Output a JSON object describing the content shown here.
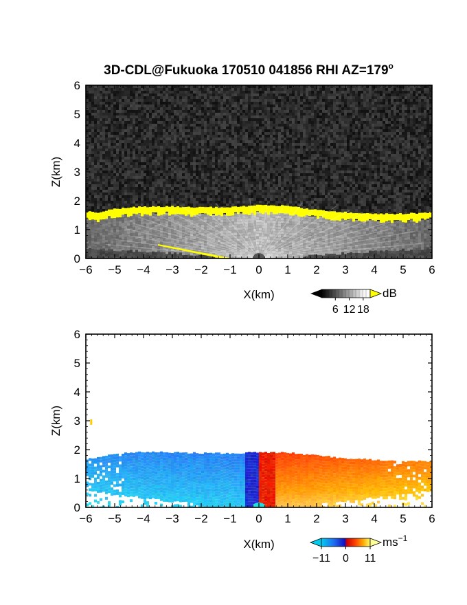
{
  "chart_data": {
    "title": "3D-CDL@Fukuoka 170510 041856 RHI AZ=179",
    "title_superscript": "o",
    "panels": [
      {
        "type": "heatmap",
        "quantity": "reflectivity",
        "xlabel": "X(km)",
        "ylabel": "Z(km)",
        "xlim": [
          -6,
          6
        ],
        "ylim": [
          0,
          6
        ],
        "x_ticks": [
          "−6",
          "−5",
          "−4",
          "−3",
          "−2",
          "−1",
          "0",
          "1",
          "2",
          "3",
          "4",
          "5",
          "6"
        ],
        "y_ticks": [
          "0",
          "1",
          "2",
          "3",
          "4",
          "5",
          "6"
        ],
        "colorbar": {
          "unit": "dB",
          "ticks": [
            "6",
            "12",
            "18"
          ],
          "range": [
            0,
            21
          ],
          "high_color": "#ffff00"
        },
        "boundary_layer_top_km": [
          [
            -6,
            1.62
          ],
          [
            -5.5,
            1.6
          ],
          [
            -5,
            1.72
          ],
          [
            -4,
            1.8
          ],
          [
            -3,
            1.8
          ],
          [
            -2,
            1.77
          ],
          [
            -1,
            1.78
          ],
          [
            0,
            1.85
          ],
          [
            1,
            1.82
          ],
          [
            2,
            1.68
          ],
          [
            3,
            1.6
          ],
          [
            4,
            1.55
          ],
          [
            5,
            1.55
          ],
          [
            6,
            1.6
          ]
        ]
      },
      {
        "type": "heatmap",
        "quantity": "doppler_velocity",
        "xlabel": "X(km)",
        "ylabel": "Z(km)",
        "xlim": [
          -6,
          6
        ],
        "ylim": [
          0,
          6
        ],
        "x_ticks": [
          "−6",
          "−5",
          "−4",
          "−3",
          "−2",
          "−1",
          "0",
          "1",
          "2",
          "3",
          "4",
          "5",
          "6"
        ],
        "y_ticks": [
          "0",
          "1",
          "2",
          "3",
          "4",
          "5",
          "6"
        ],
        "colorbar": {
          "unit": "ms",
          "unit_superscript": "−1",
          "ticks": [
            "−11",
            "0",
            "11"
          ],
          "range": [
            -11,
            11
          ]
        },
        "echo_top_km": [
          [
            -6,
            1.65
          ],
          [
            -5,
            1.85
          ],
          [
            -4,
            1.92
          ],
          [
            -3,
            1.9
          ],
          [
            -2,
            1.88
          ],
          [
            -1,
            1.88
          ],
          [
            0,
            1.9
          ],
          [
            1,
            1.9
          ],
          [
            2,
            1.8
          ],
          [
            3,
            1.7
          ],
          [
            4,
            1.65
          ],
          [
            5,
            1.6
          ],
          [
            6,
            1.6
          ]
        ]
      }
    ]
  }
}
